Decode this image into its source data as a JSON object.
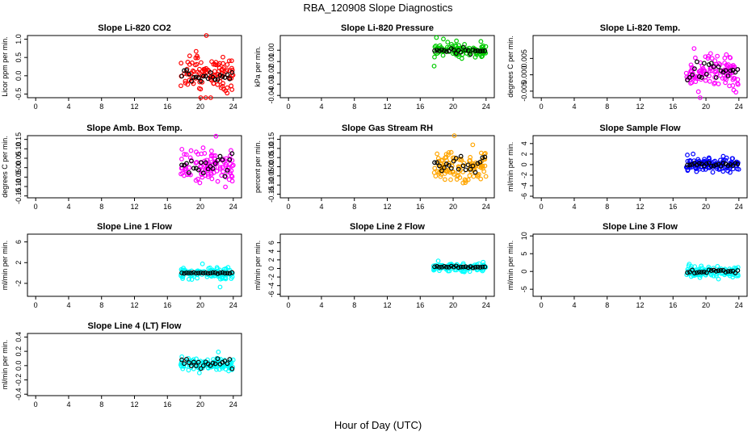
{
  "figure": {
    "title": "RBA_120908  Slope Diagnostics",
    "xlabel": "Hour of Day (UTC)"
  },
  "colors": {
    "red": "#ff0000",
    "green": "#00cc00",
    "magenta": "#ff00ff",
    "orange": "#ffa500",
    "blue": "#0000ff",
    "cyan": "#00ffff",
    "black": "#000000"
  },
  "chart_data": [
    {
      "type": "scatter",
      "title": "Slope Li-820 CO2",
      "ylabel": "Licor ppm per min.",
      "xlim": [
        -1,
        25
      ],
      "xticks": [
        0,
        4,
        8,
        12,
        16,
        20,
        24
      ],
      "ylim": [
        -0.6,
        1.1
      ],
      "yticks": [
        -0.5,
        0.0,
        0.5,
        1.0
      ],
      "yticklabels": [
        "-0.5",
        "0.0",
        "0.5",
        "1.0"
      ],
      "x_range": [
        17.6,
        24
      ],
      "color": "red",
      "center": 0.05,
      "spread": 0.35,
      "black_center": 0.0,
      "black_spread": 0.12
    },
    {
      "type": "scatter",
      "title": "Slope Li-820 Pressure",
      "ylabel": "kPa per min.",
      "xlim": [
        -1,
        25
      ],
      "xticks": [
        0,
        4,
        8,
        12,
        16,
        20,
        24
      ],
      "ylim": [
        -0.042,
        0.013
      ],
      "yticks": [
        -0.04,
        -0.03,
        -0.02,
        -0.01,
        0.0
      ],
      "yticklabels": [
        "-0.04",
        "-0.03",
        "-0.02",
        "-0.01",
        "0.00"
      ],
      "x_range": [
        17.6,
        24
      ],
      "color": "green",
      "center": 0.0,
      "spread": 0.0035,
      "black_center": 0.0,
      "black_spread": 0.002
    },
    {
      "type": "scatter",
      "title": "Slope Li-820 Temp.",
      "ylabel": "degrees C per min.",
      "xlim": [
        -1,
        25
      ],
      "xticks": [
        0,
        4,
        8,
        12,
        16,
        20,
        24
      ],
      "ylim": [
        -0.007,
        0.012
      ],
      "yticks": [
        -0.005,
        0.0,
        0.005
      ],
      "yticklabels": [
        "-0.005",
        "0.000",
        "0.005"
      ],
      "x_range": [
        17.6,
        24
      ],
      "color": "magenta",
      "center": 0.001,
      "spread": 0.0035,
      "black_center": 0.001,
      "black_spread": 0.002
    },
    {
      "type": "scatter",
      "title": "Slope Amb. Box Temp.",
      "ylabel": "degrees C per min.",
      "xlim": [
        -1,
        25
      ],
      "xticks": [
        0,
        4,
        8,
        12,
        16,
        20,
        24
      ],
      "ylim": [
        -0.16,
        0.17
      ],
      "yticks": [
        -0.15,
        -0.1,
        -0.05,
        0.0,
        0.05,
        0.1,
        0.15
      ],
      "yticklabels": [
        "-0.15",
        "-0.10",
        "-0.05",
        "0.00",
        "0.05",
        "0.10",
        "0.15"
      ],
      "x_range": [
        17.6,
        24
      ],
      "color": "magenta",
      "center": 0.0,
      "spread": 0.06,
      "black_center": 0.02,
      "black_spread": 0.04
    },
    {
      "type": "scatter",
      "title": "Slope Gas Stream RH",
      "ylabel": "percent per min.",
      "xlim": [
        -1,
        25
      ],
      "xticks": [
        0,
        4,
        8,
        12,
        16,
        20,
        24
      ],
      "ylim": [
        -0.17,
        0.17
      ],
      "yticks": [
        -0.15,
        -0.1,
        -0.05,
        0.0,
        0.05,
        0.1,
        0.15
      ],
      "yticklabels": [
        "-0.15",
        "-0.10",
        "-0.05",
        "0.00",
        "0.05",
        "0.10",
        "0.15"
      ],
      "x_range": [
        17.6,
        24
      ],
      "color": "orange",
      "center": 0.0,
      "spread": 0.055,
      "black_center": 0.02,
      "black_spread": 0.03
    },
    {
      "type": "scatter",
      "title": "Slope Sample Flow",
      "ylabel": "ml/min per min.",
      "xlim": [
        -1,
        25
      ],
      "xticks": [
        0,
        4,
        8,
        12,
        16,
        20,
        24
      ],
      "ylim": [
        -6.3,
        5.5
      ],
      "yticks": [
        -6,
        -4,
        -2,
        0,
        2,
        4
      ],
      "yticklabels": [
        "-6",
        "-4",
        "-2",
        "0",
        "2",
        "4"
      ],
      "x_range": [
        17.6,
        24
      ],
      "color": "blue",
      "center": 0.0,
      "spread": 0.8,
      "black_center": 0.0,
      "black_spread": 0.3
    },
    {
      "type": "scatter",
      "title": "Slope Line 1 Flow",
      "ylabel": "ml/min per min.",
      "xlim": [
        -1,
        25
      ],
      "xticks": [
        0,
        4,
        8,
        12,
        16,
        20,
        24
      ],
      "ylim": [
        -4.5,
        7.5
      ],
      "yticks": [
        -2,
        2,
        6
      ],
      "yticklabels": [
        "-2",
        "2",
        "6"
      ],
      "x_range": [
        17.6,
        24
      ],
      "color": "cyan",
      "center": 0.0,
      "spread": 0.8,
      "black_center": 0.0,
      "black_spread": 0.15
    },
    {
      "type": "scatter",
      "title": "Slope Line 2 Flow",
      "ylabel": "ml/min per min.",
      "xlim": [
        -1,
        25
      ],
      "xticks": [
        0,
        4,
        8,
        12,
        16,
        20,
        24
      ],
      "ylim": [
        -6.5,
        8.0
      ],
      "yticks": [
        -6,
        -4,
        -2,
        0,
        2,
        4,
        6
      ],
      "yticklabels": [
        "-6",
        "-4",
        "-2",
        "0",
        "2",
        "4",
        "6"
      ],
      "x_range": [
        17.6,
        24
      ],
      "color": "cyan",
      "center": 0.3,
      "spread": 0.6,
      "black_center": 0.3,
      "black_spread": 0.2
    },
    {
      "type": "scatter",
      "title": "Slope Line 3 Flow",
      "ylabel": "ml/min per min.",
      "xlim": [
        -1,
        25
      ],
      "xticks": [
        0,
        4,
        8,
        12,
        16,
        20,
        24
      ],
      "ylim": [
        -7.0,
        10.5
      ],
      "yticks": [
        -5,
        0,
        5,
        10
      ],
      "yticklabels": [
        "-5",
        "0",
        "5",
        "10"
      ],
      "x_range": [
        17.6,
        24
      ],
      "color": "cyan",
      "center": 0.0,
      "spread": 1.0,
      "black_center": 0.0,
      "black_spread": 0.4
    },
    {
      "type": "scatter",
      "title": "Slope Line 4 (LT) Flow",
      "ylabel": "ml/min per min.",
      "xlim": [
        -1,
        25
      ],
      "xticks": [
        0,
        4,
        8,
        12,
        16,
        20,
        24
      ],
      "ylim": [
        -0.42,
        0.45
      ],
      "yticks": [
        -0.4,
        -0.2,
        0.0,
        0.2,
        0.4
      ],
      "yticklabels": [
        "-0.4",
        "-0.2",
        "0.0",
        "0.2",
        "0.4"
      ],
      "x_range": [
        17.6,
        24
      ],
      "color": "cyan",
      "center": 0.02,
      "spread": 0.06,
      "black_center": 0.02,
      "black_spread": 0.05
    }
  ]
}
